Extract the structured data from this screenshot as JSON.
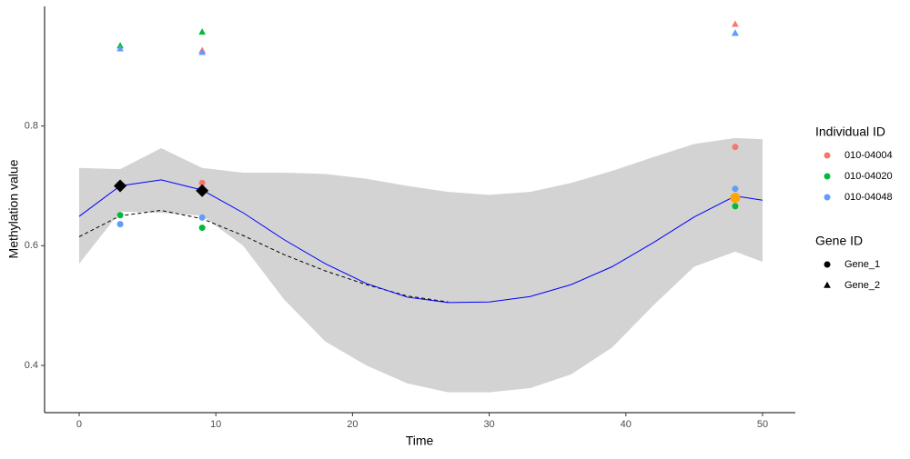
{
  "chart_data": {
    "type": "scatter",
    "x_label": "Time",
    "y_label": "Methylation value",
    "xlim": [
      -2.53,
      52.4
    ],
    "ylim": [
      0.321,
      1.0
    ],
    "xticks": [
      0,
      10,
      20,
      30,
      40,
      50
    ],
    "yticks": [
      0.4,
      0.6,
      0.8
    ],
    "grid": false,
    "legend_position": "right",
    "color_legend_title": "Individual ID",
    "shape_legend": {
      "title": "Gene ID",
      "entries": [
        "Gene_1",
        "Gene_2"
      ]
    },
    "series": [
      {
        "name": "010-04004",
        "color": "#F8766D",
        "x": [
          9,
          48,
          9,
          48
        ],
        "values": [
          0.705,
          0.765,
          0.926,
          0.97
        ],
        "shapes": [
          0,
          0,
          1,
          1
        ]
      },
      {
        "name": "010-04020",
        "color": "#00BA38",
        "x": [
          3,
          9,
          48,
          3,
          9,
          48
        ],
        "values": [
          0.651,
          0.63,
          0.666,
          0.934,
          0.957,
          0.955
        ],
        "shapes": [
          0,
          0,
          0,
          1,
          1,
          1
        ]
      },
      {
        "name": "010-04048",
        "color": "#619CFF",
        "x": [
          3,
          9,
          48,
          3,
          9,
          48
        ],
        "values": [
          0.636,
          0.647,
          0.695,
          0.929,
          0.923,
          0.955
        ],
        "shapes": [
          0,
          0,
          0,
          1,
          1,
          1
        ]
      }
    ],
    "highlights": [
      {
        "color": "#000000",
        "x": [
          3,
          9
        ],
        "values": [
          0.7,
          0.692
        ]
      },
      {
        "color": "#FFA500",
        "x": [
          48
        ],
        "values": [
          0.68
        ]
      }
    ],
    "fit": {
      "color": "#0000FF",
      "ribbon_color": "#D3D3D3",
      "x": [
        0,
        3,
        6,
        9,
        12,
        15,
        18,
        21,
        24,
        27,
        30,
        33,
        36,
        39,
        42,
        45,
        48,
        50
      ],
      "values": [
        0.649,
        0.7,
        0.71,
        0.693,
        0.655,
        0.61,
        0.57,
        0.537,
        0.514,
        0.505,
        0.506,
        0.515,
        0.535,
        0.565,
        0.605,
        0.648,
        0.683,
        0.676
      ],
      "upper": [
        0.73,
        0.728,
        0.763,
        0.73,
        0.722,
        0.722,
        0.72,
        0.712,
        0.7,
        0.69,
        0.685,
        0.69,
        0.705,
        0.725,
        0.748,
        0.77,
        0.78,
        0.778
      ],
      "lower": [
        0.57,
        0.657,
        0.655,
        0.65,
        0.6,
        0.51,
        0.44,
        0.4,
        0.37,
        0.355,
        0.355,
        0.362,
        0.385,
        0.43,
        0.5,
        0.565,
        0.59,
        0.573
      ]
    },
    "fit_dashed": {
      "color": "#000000",
      "x": [
        0,
        3,
        6,
        9,
        12,
        15,
        18,
        21,
        24,
        27
      ],
      "values": [
        0.615,
        0.65,
        0.659,
        0.645,
        0.617,
        0.585,
        0.558,
        0.535,
        0.516,
        0.506
      ]
    }
  }
}
